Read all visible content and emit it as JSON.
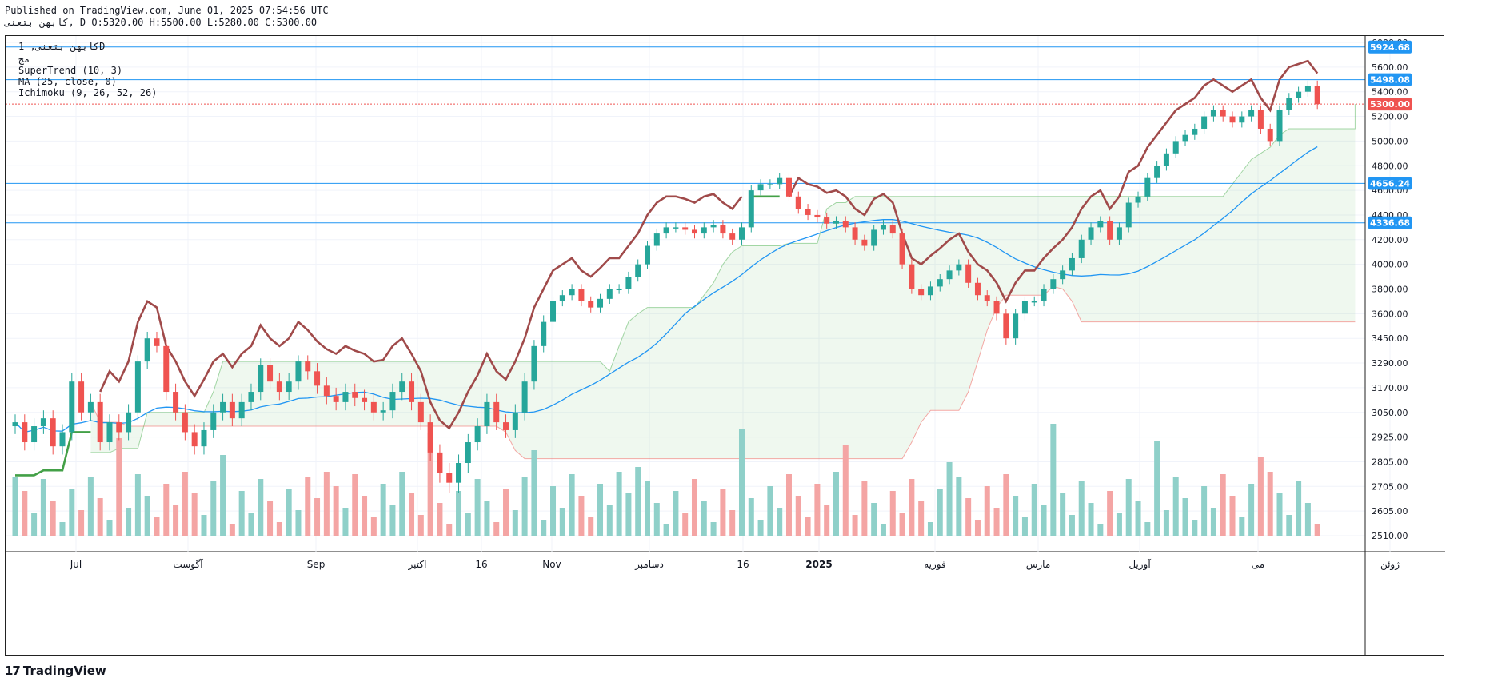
{
  "header": {
    "published": "Published on TradingView.com, June 01, 2025 07:54:56 UTC",
    "symbol_line": "كابهن بتعنى, D O:5320.00 H:5500.00 L:5280.00 C:5300.00"
  },
  "legend": {
    "symbol": "كابهن بتعنى, 1D",
    "sub": "مج",
    "indicators": [
      "SuperTrend (10, 3)",
      "MA (25, close, 0)",
      "Ichimoku (9, 26, 52, 26)"
    ]
  },
  "brand": {
    "name": "TradingView",
    "logo": "17"
  },
  "colors": {
    "up": "#26a69a",
    "down": "#ef5350",
    "up_vol": "#8fd0c9",
    "down_vol": "#f4a5a4",
    "supertrend_up": "#43a047",
    "supertrend_down": "#a04a4a",
    "ma": "#2196f3",
    "hline": "#2196f3",
    "cloud_green": "#4caf50",
    "cloud_red": "#ef5350",
    "price_tag": "#ef5350"
  },
  "chart_data": {
    "type": "candlestick",
    "title": "كابهن بتعنى, 1D",
    "y_ticks": [
      "6000.00",
      "5600.00",
      "5400.00",
      "5200.00",
      "5000.00",
      "4800.00",
      "4600.00",
      "4400.00",
      "4200.00",
      "4000.00",
      "3800.00",
      "3600.00",
      "3450.00",
      "3290.00",
      "3170.00",
      "3050.00",
      "2925.00",
      "2805.00",
      "2705.00",
      "2605.00",
      "2510.00"
    ],
    "x_labels": [
      "Jul",
      "آگوست",
      "Sep",
      "اکتبر",
      "16",
      "Nov",
      "دسامبر",
      "16",
      "2025",
      "فوریه",
      "مارس",
      "آوریل",
      "می",
      "ژوئن"
    ],
    "horizontal_levels": [
      {
        "label": "5924.68",
        "value": 5924.68
      },
      {
        "label": "5498.08",
        "value": 5498.08
      },
      {
        "label": "4656.24",
        "value": 4656.24
      },
      {
        "label": "4336.68",
        "value": 4336.68
      }
    ],
    "last_price": {
      "label": "5300.00",
      "value": 5300
    },
    "ohlc": {
      "open": 5320,
      "high": 5500,
      "low": 5280,
      "close": 5300
    },
    "supertrend_params": "10, 3",
    "ma_params": "25, close, 0",
    "ichimoku_params": "9, 26, 52, 26",
    "price_path": [
      3000,
      2900,
      2980,
      3020,
      2880,
      2950,
      3200,
      3050,
      3100,
      2900,
      3000,
      2950,
      3050,
      3300,
      3450,
      3400,
      3150,
      3050,
      2950,
      2880,
      2960,
      3050,
      3100,
      3020,
      3100,
      3150,
      3280,
      3200,
      3150,
      3200,
      3300,
      3250,
      3180,
      3130,
      3100,
      3150,
      3120,
      3100,
      3050,
      3060,
      3150,
      3200,
      3100,
      3000,
      2850,
      2760,
      2720,
      2800,
      2900,
      2980,
      3100,
      3000,
      2960,
      3050,
      3200,
      3400,
      3550,
      3700,
      3750,
      3800,
      3700,
      3650,
      3720,
      3800,
      3800,
      3900,
      4000,
      4150,
      4250,
      4300,
      4300,
      4280,
      4250,
      4300,
      4320,
      4250,
      4200,
      4300,
      4600,
      4650,
      4650,
      4700,
      4550,
      4450,
      4400,
      4380,
      4330,
      4350,
      4300,
      4200,
      4150,
      4280,
      4320,
      4250,
      4000,
      3800,
      3750,
      3820,
      3880,
      3950,
      4000,
      3850,
      3750,
      3700,
      3600,
      3450,
      3600,
      3700,
      3700,
      3800,
      3880,
      3950,
      4050,
      4200,
      4300,
      4350,
      4200,
      4300,
      4500,
      4550,
      4700,
      4800,
      4900,
      5000,
      5050,
      5100,
      5200,
      5250,
      5200,
      5150,
      5200,
      5250,
      5100,
      5000,
      5250,
      5350,
      5400,
      5450,
      5300
    ]
  }
}
